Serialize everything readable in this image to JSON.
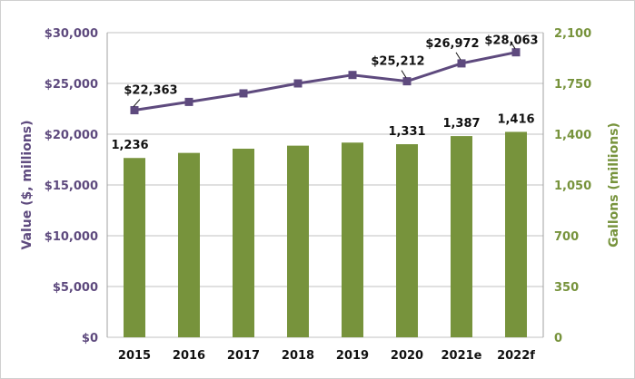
{
  "chart_data": {
    "type": "bar+line",
    "title": "",
    "categories": [
      "2015",
      "2016",
      "2017",
      "2018",
      "2019",
      "2020",
      "2021e",
      "2022f"
    ],
    "series": [
      {
        "name": "Gallons (millions)",
        "type": "bar",
        "axis": "right",
        "values": [
          1236,
          1271,
          1300,
          1321,
          1342,
          1331,
          1387,
          1416
        ],
        "labels": [
          "1,236",
          "",
          "",
          "",
          "",
          "1,331",
          "1,387",
          "1,416"
        ]
      },
      {
        "name": "Value ($, millions)",
        "type": "line",
        "axis": "left",
        "values": [
          22363,
          23180,
          24020,
          25000,
          25830,
          25212,
          26972,
          28063
        ],
        "labels": [
          "$22,363",
          "",
          "",
          "",
          "",
          "$25,212",
          "$26,972",
          "$28,063"
        ]
      }
    ],
    "ylabel_left": "Value ($, millions)",
    "ylabel_right": "Gallons (millions)",
    "ylim_left": [
      0,
      30000
    ],
    "ylim_right": [
      0,
      2100
    ],
    "yticks_left": [
      "$0",
      "$5,000",
      "$10,000",
      "$15,000",
      "$20,000",
      "$25,000",
      "$30,000"
    ],
    "yticks_right": [
      "0",
      "350",
      "700",
      "1,050",
      "1,400",
      "1,750",
      "2,100"
    ],
    "grid": true,
    "colors": {
      "line": "#5e4a7e",
      "bar": "#77933c",
      "left_axis_text": "#5e4a7e",
      "right_axis_text": "#77933c",
      "grid": "#c0c0c0"
    }
  }
}
